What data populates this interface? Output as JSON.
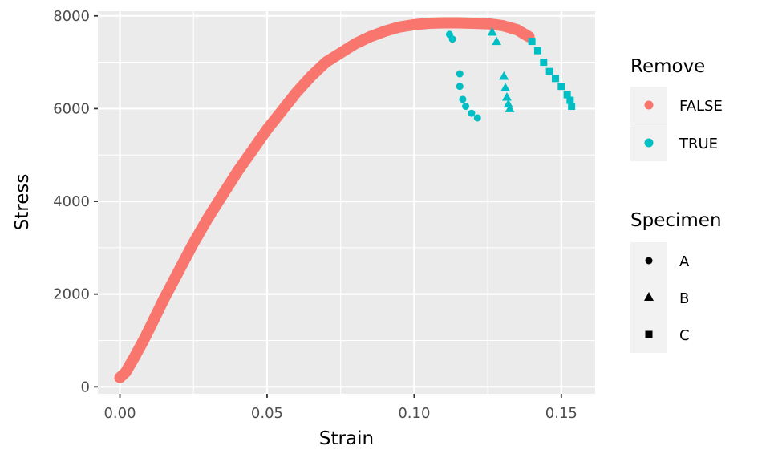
{
  "chart_data": {
    "type": "scatter",
    "xlabel": "Strain",
    "ylabel": "Stress",
    "xlim": [
      -0.0075,
      0.1615
    ],
    "ylim": [
      -150,
      8100
    ],
    "x_ticks": [
      {
        "value": 0.0,
        "label": "0.00"
      },
      {
        "value": 0.05,
        "label": "0.05"
      },
      {
        "value": 0.1,
        "label": "0.10"
      },
      {
        "value": 0.15,
        "label": "0.15"
      }
    ],
    "y_ticks": [
      {
        "value": 0,
        "label": "0"
      },
      {
        "value": 2000,
        "label": "2000"
      },
      {
        "value": 4000,
        "label": "4000"
      },
      {
        "value": 6000,
        "label": "6000"
      },
      {
        "value": 8000,
        "label": "8000"
      }
    ],
    "grid": true,
    "legend_position": "right",
    "colors": {
      "FALSE": "#F8766D",
      "TRUE": "#00BFC4"
    },
    "legends": [
      {
        "title": "Remove",
        "key": "color",
        "entries": [
          {
            "label": "FALSE",
            "color": "#F8766D",
            "shape": "circle"
          },
          {
            "label": "TRUE",
            "color": "#00BFC4",
            "shape": "circle"
          }
        ]
      },
      {
        "title": "Specimen",
        "key": "shape",
        "entries": [
          {
            "label": "A",
            "shape": "circle"
          },
          {
            "label": "B",
            "shape": "triangle"
          },
          {
            "label": "C",
            "shape": "square"
          }
        ]
      }
    ],
    "series": [
      {
        "remove": "FALSE",
        "points": [
          [
            0.0,
            200
          ],
          [
            0.002,
            320
          ],
          [
            0.005,
            650
          ],
          [
            0.008,
            1000
          ],
          [
            0.01,
            1250
          ],
          [
            0.015,
            1900
          ],
          [
            0.02,
            2500
          ],
          [
            0.025,
            3100
          ],
          [
            0.03,
            3650
          ],
          [
            0.035,
            4150
          ],
          [
            0.04,
            4650
          ],
          [
            0.045,
            5100
          ],
          [
            0.05,
            5550
          ],
          [
            0.055,
            5950
          ],
          [
            0.06,
            6350
          ],
          [
            0.065,
            6700
          ],
          [
            0.07,
            7000
          ],
          [
            0.075,
            7200
          ],
          [
            0.08,
            7400
          ],
          [
            0.085,
            7550
          ],
          [
            0.09,
            7670
          ],
          [
            0.095,
            7760
          ],
          [
            0.1,
            7810
          ],
          [
            0.105,
            7840
          ],
          [
            0.11,
            7850
          ],
          [
            0.115,
            7850
          ],
          [
            0.12,
            7840
          ],
          [
            0.125,
            7830
          ],
          [
            0.13,
            7790
          ],
          [
            0.135,
            7700
          ],
          [
            0.139,
            7550
          ]
        ]
      },
      {
        "remove": "TRUE",
        "specimen": "A",
        "points": [
          [
            0.112,
            7600
          ],
          [
            0.113,
            7500
          ],
          [
            0.1155,
            6750
          ],
          [
            0.1155,
            6480
          ],
          [
            0.1165,
            6200
          ],
          [
            0.1175,
            6050
          ],
          [
            0.1195,
            5900
          ],
          [
            0.1215,
            5800
          ]
        ]
      },
      {
        "remove": "TRUE",
        "specimen": "B",
        "points": [
          [
            0.1265,
            7650
          ],
          [
            0.128,
            7450
          ],
          [
            0.1305,
            6700
          ],
          [
            0.131,
            6450
          ],
          [
            0.1315,
            6250
          ],
          [
            0.132,
            6100
          ],
          [
            0.1325,
            6000
          ]
        ]
      },
      {
        "remove": "TRUE",
        "specimen": "C",
        "points": [
          [
            0.14,
            7450
          ],
          [
            0.142,
            7250
          ],
          [
            0.144,
            7000
          ],
          [
            0.146,
            6800
          ],
          [
            0.148,
            6650
          ],
          [
            0.15,
            6480
          ],
          [
            0.152,
            6300
          ],
          [
            0.153,
            6180
          ],
          [
            0.1535,
            6050
          ]
        ]
      }
    ]
  }
}
